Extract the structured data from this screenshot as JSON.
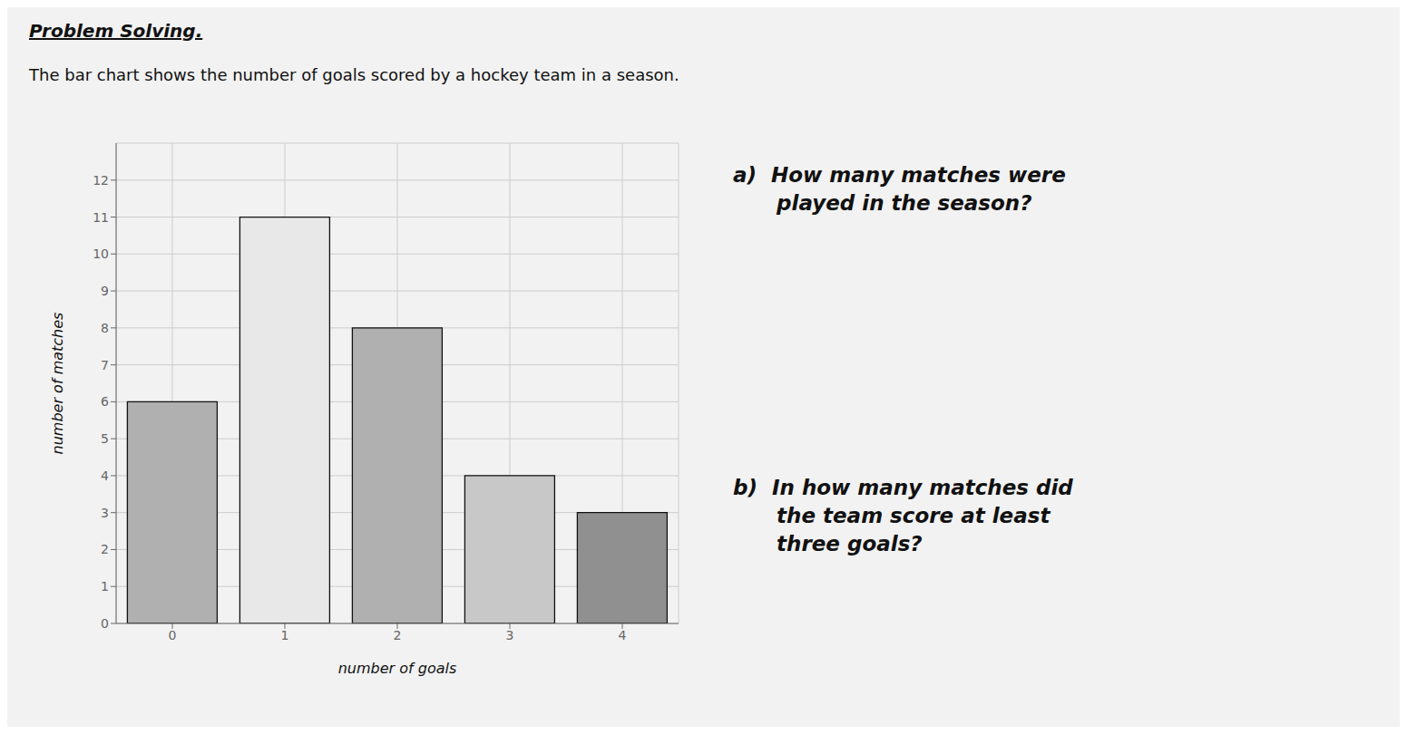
{
  "chart_data": {
    "type": "bar",
    "title": "Problem Solving.",
    "subtitle": "The bar chart shows the number of goals scored by a hockey team in a season.",
    "annotations": [
      "a)  How many matches were\n      played in the season?",
      "b)  In how many matches did\n      the team score at least\n      three goals?"
    ],
    "categories": [
      0,
      1,
      2,
      3,
      4
    ],
    "values": [
      6,
      11,
      8,
      4,
      3
    ],
    "colors": [
      "#b0b0b0",
      "#e8e8e8",
      "#b0b0b0",
      "#c8c8c8",
      "#909090"
    ],
    "xlabel": "number of goals",
    "ylabel": "number of matches",
    "ylim": [
      0,
      13
    ],
    "yticks": [
      0,
      1,
      2,
      3,
      4,
      5,
      6,
      7,
      8,
      9,
      10,
      11,
      12
    ],
    "grid": true
  }
}
